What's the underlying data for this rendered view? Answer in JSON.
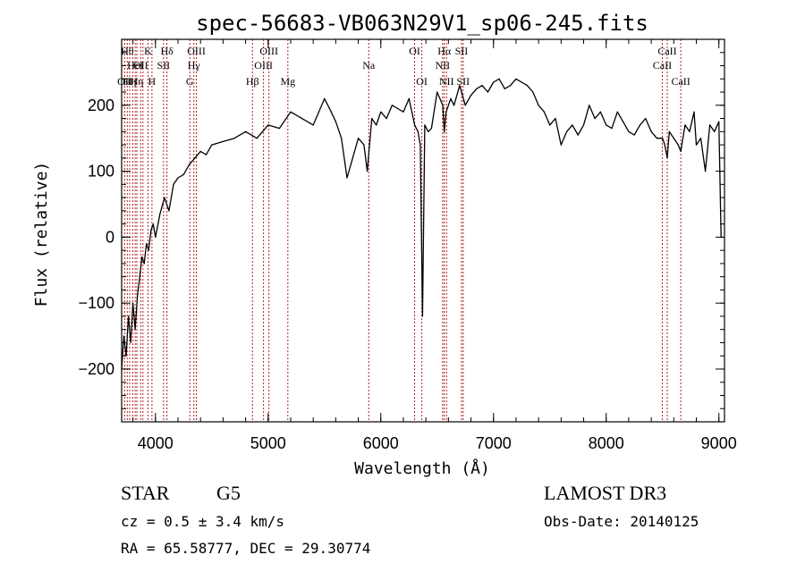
{
  "chart_data": {
    "type": "line",
    "title": "spec-56683-VB063N29V1_sp06-245.fits",
    "xlabel": "Wavelength (Å)",
    "ylabel": "Flux (relative)",
    "xlim": [
      3700,
      9050
    ],
    "ylim": [
      -280,
      300
    ],
    "x_ticks": [
      4000,
      5000,
      6000,
      7000,
      8000,
      9000
    ],
    "y_ticks": [
      -200,
      -100,
      0,
      100,
      200
    ],
    "x_minor_step": 200,
    "y_minor_step": 20,
    "line_color": "#000000",
    "marker_color": "#b22222",
    "series": [
      {
        "name": "flux",
        "x": [
          3700,
          3720,
          3740,
          3760,
          3780,
          3800,
          3820,
          3840,
          3860,
          3880,
          3900,
          3920,
          3940,
          3960,
          3980,
          4000,
          4040,
          4080,
          4120,
          4160,
          4200,
          4250,
          4300,
          4350,
          4400,
          4450,
          4500,
          4600,
          4700,
          4800,
          4900,
          5000,
          5100,
          5200,
          5300,
          5400,
          5500,
          5560,
          5600,
          5650,
          5700,
          5750,
          5800,
          5850,
          5880,
          5920,
          5960,
          6000,
          6050,
          6100,
          6150,
          6200,
          6250,
          6300,
          6330,
          6350,
          6370,
          6390,
          6420,
          6450,
          6500,
          6550,
          6563,
          6580,
          6620,
          6650,
          6700,
          6750,
          6800,
          6850,
          6900,
          6950,
          7000,
          7050,
          7100,
          7150,
          7200,
          7250,
          7300,
          7350,
          7400,
          7450,
          7500,
          7550,
          7600,
          7650,
          7700,
          7750,
          7800,
          7850,
          7900,
          7950,
          8000,
          8050,
          8100,
          8150,
          8200,
          8250,
          8300,
          8350,
          8400,
          8450,
          8500,
          8520,
          8542,
          8560,
          8600,
          8640,
          8662,
          8700,
          8740,
          8780,
          8800,
          8840,
          8880,
          8920,
          8960,
          9000,
          9020
        ],
        "values": [
          -200,
          -150,
          -180,
          -120,
          -160,
          -100,
          -140,
          -90,
          -60,
          -30,
          -40,
          -10,
          -20,
          10,
          20,
          0,
          35,
          60,
          40,
          80,
          90,
          95,
          110,
          120,
          130,
          125,
          140,
          145,
          150,
          160,
          150,
          170,
          165,
          190,
          180,
          170,
          210,
          190,
          175,
          150,
          90,
          120,
          150,
          140,
          100,
          180,
          170,
          190,
          180,
          200,
          195,
          190,
          210,
          170,
          160,
          140,
          -120,
          170,
          160,
          165,
          220,
          200,
          160,
          190,
          210,
          200,
          230,
          200,
          215,
          225,
          230,
          220,
          235,
          240,
          225,
          230,
          240,
          235,
          230,
          220,
          200,
          190,
          170,
          180,
          140,
          160,
          170,
          155,
          170,
          200,
          180,
          190,
          170,
          165,
          190,
          175,
          160,
          155,
          170,
          180,
          160,
          150,
          150,
          140,
          120,
          160,
          150,
          140,
          130,
          170,
          160,
          190,
          140,
          150,
          100,
          170,
          160,
          175,
          0
        ]
      }
    ],
    "line_markers": [
      {
        "x": 3727,
        "label": "OII",
        "row": 3
      },
      {
        "x": 3750,
        "label": "Hθ",
        "row": 1
      },
      {
        "x": 3771,
        "label": "Hη",
        "row": 3
      },
      {
        "x": 3798,
        "label": "",
        "row": 0
      },
      {
        "x": 3820,
        "label": "HeI",
        "row": 2
      },
      {
        "x": 3835,
        "label": "Hη",
        "row": 3
      },
      {
        "x": 3869,
        "label": "OII",
        "row": 2
      },
      {
        "x": 3889,
        "label": "",
        "row": 0
      },
      {
        "x": 3934,
        "label": "K",
        "row": 1
      },
      {
        "x": 3969,
        "label": "H",
        "row": 3
      },
      {
        "x": 4072,
        "label": "SII",
        "row": 2
      },
      {
        "x": 4102,
        "label": "Hδ",
        "row": 1
      },
      {
        "x": 4305,
        "label": "G",
        "row": 3
      },
      {
        "x": 4341,
        "label": "Hγ",
        "row": 2
      },
      {
        "x": 4363,
        "label": "OIII",
        "row": 1
      },
      {
        "x": 4861,
        "label": "Hβ",
        "row": 3
      },
      {
        "x": 4959,
        "label": "OIII",
        "row": 2
      },
      {
        "x": 5007,
        "label": "OIII",
        "row": 1
      },
      {
        "x": 5175,
        "label": "Mg",
        "row": 3
      },
      {
        "x": 5893,
        "label": "Na",
        "row": 2
      },
      {
        "x": 6300,
        "label": "OI",
        "row": 1
      },
      {
        "x": 6364,
        "label": "OI",
        "row": 3
      },
      {
        "x": 6548,
        "label": "NII",
        "row": 2
      },
      {
        "x": 6563,
        "label": "Hα",
        "row": 1
      },
      {
        "x": 6583,
        "label": "NII",
        "row": 3
      },
      {
        "x": 6716,
        "label": "SII",
        "row": 1
      },
      {
        "x": 6731,
        "label": "SII",
        "row": 3
      },
      {
        "x": 8498,
        "label": "CaII",
        "row": 2
      },
      {
        "x": 8542,
        "label": "CaII",
        "row": 1
      },
      {
        "x": 8662,
        "label": "CaII",
        "row": 3
      }
    ]
  },
  "info": {
    "object_class": "STAR",
    "subclass": "G5",
    "survey": "LAMOST DR3",
    "redshift_line": "cz = 0.5 ± 3.4 km/s",
    "obs_date": "Obs-Date: 20140125",
    "coords": "RA =  65.58777, DEC =  29.30774"
  }
}
